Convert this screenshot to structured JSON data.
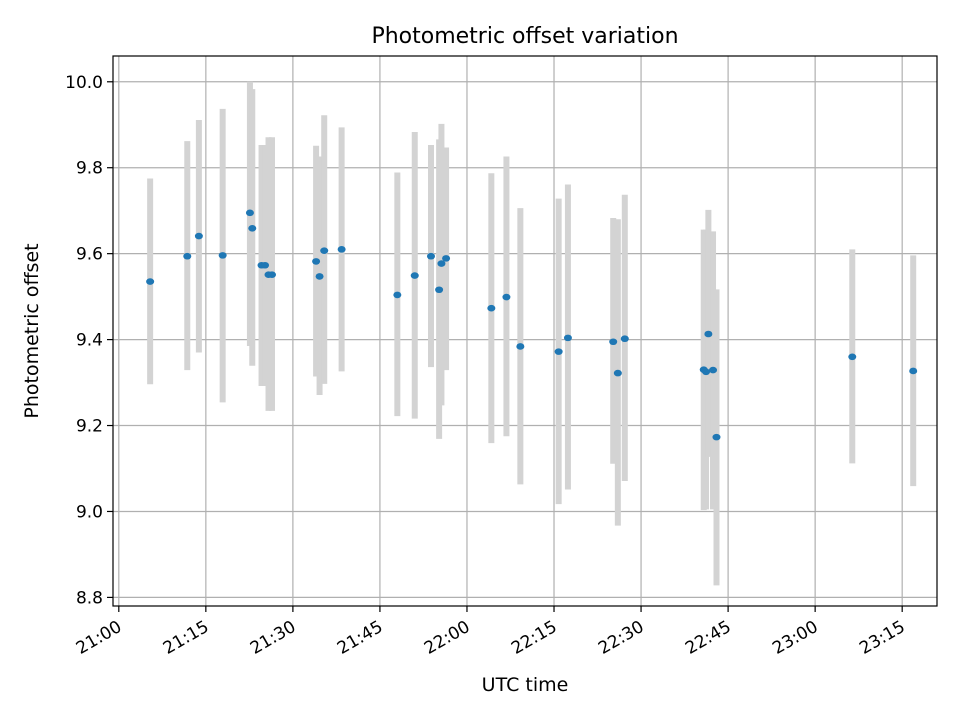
{
  "chart_data": {
    "type": "scatter",
    "title": "Photometric offset variation",
    "xlabel": "UTC time",
    "ylabel": "Photometric offset",
    "x_ticks": [
      "21:00",
      "21:15",
      "21:30",
      "21:45",
      "22:00",
      "22:15",
      "22:30",
      "22:45",
      "23:00",
      "23:15"
    ],
    "y_ticks": [
      "8.8",
      "9.0",
      "9.2",
      "9.4",
      "9.6",
      "9.8",
      "10.0"
    ],
    "xlim": [
      "20:59",
      "23:21"
    ],
    "ylim": [
      8.78,
      10.06
    ],
    "grid": true,
    "colors": {
      "points": "#1f77b4",
      "errorbars": "#d3d3d3",
      "grid": "#b0b0b0"
    },
    "points": [
      {
        "t": "21:05:24",
        "y": 9.535,
        "lo": 9.296,
        "hi": 9.775
      },
      {
        "t": "21:11:48",
        "y": 9.594,
        "lo": 9.329,
        "hi": 9.862
      },
      {
        "t": "21:13:48",
        "y": 9.641,
        "lo": 9.37,
        "hi": 9.911
      },
      {
        "t": "21:17:54",
        "y": 9.596,
        "lo": 9.254,
        "hi": 9.937
      },
      {
        "t": "21:22:36",
        "y": 9.695,
        "lo": 9.385,
        "hi": 10.0
      },
      {
        "t": "21:23:00",
        "y": 9.659,
        "lo": 9.339,
        "hi": 9.983
      },
      {
        "t": "21:24:36",
        "y": 9.573,
        "lo": 9.292,
        "hi": 9.853
      },
      {
        "t": "21:25:12",
        "y": 9.573,
        "lo": 9.292,
        "hi": 9.853
      },
      {
        "t": "21:25:48",
        "y": 9.551,
        "lo": 9.234,
        "hi": 9.871
      },
      {
        "t": "21:26:24",
        "y": 9.551,
        "lo": 9.234,
        "hi": 9.871
      },
      {
        "t": "21:34:00",
        "y": 9.582,
        "lo": 9.314,
        "hi": 9.851
      },
      {
        "t": "21:34:36",
        "y": 9.547,
        "lo": 9.271,
        "hi": 9.826
      },
      {
        "t": "21:35:24",
        "y": 9.607,
        "lo": 9.297,
        "hi": 9.922
      },
      {
        "t": "21:38:24",
        "y": 9.61,
        "lo": 9.326,
        "hi": 9.894
      },
      {
        "t": "21:48:00",
        "y": 9.504,
        "lo": 9.222,
        "hi": 9.789
      },
      {
        "t": "21:51:00",
        "y": 9.549,
        "lo": 9.216,
        "hi": 9.883
      },
      {
        "t": "21:53:48",
        "y": 9.594,
        "lo": 9.336,
        "hi": 9.853
      },
      {
        "t": "21:55:12",
        "y": 9.516,
        "lo": 9.169,
        "hi": 9.866
      },
      {
        "t": "21:55:36",
        "y": 9.577,
        "lo": 9.247,
        "hi": 9.902
      },
      {
        "t": "21:56:24",
        "y": 9.589,
        "lo": 9.329,
        "hi": 9.847
      },
      {
        "t": "22:04:12",
        "y": 9.473,
        "lo": 9.159,
        "hi": 9.787
      },
      {
        "t": "22:06:48",
        "y": 9.499,
        "lo": 9.175,
        "hi": 9.826
      },
      {
        "t": "22:09:12",
        "y": 9.384,
        "lo": 9.063,
        "hi": 9.706
      },
      {
        "t": "22:15:48",
        "y": 9.372,
        "lo": 9.017,
        "hi": 9.728
      },
      {
        "t": "22:17:24",
        "y": 9.404,
        "lo": 9.051,
        "hi": 9.761
      },
      {
        "t": "22:25:12",
        "y": 9.395,
        "lo": 9.111,
        "hi": 9.683
      },
      {
        "t": "22:26:00",
        "y": 9.322,
        "lo": 8.967,
        "hi": 9.68
      },
      {
        "t": "22:27:12",
        "y": 9.402,
        "lo": 9.071,
        "hi": 9.737
      },
      {
        "t": "22:40:48",
        "y": 9.33,
        "lo": 9.003,
        "hi": 9.656
      },
      {
        "t": "22:41:12",
        "y": 9.325,
        "lo": 9.005,
        "hi": 9.656
      },
      {
        "t": "22:41:36",
        "y": 9.413,
        "lo": 9.127,
        "hi": 9.702
      },
      {
        "t": "22:42:24",
        "y": 9.329,
        "lo": 9.005,
        "hi": 9.652
      },
      {
        "t": "22:43:00",
        "y": 9.173,
        "lo": 8.828,
        "hi": 9.517
      },
      {
        "t": "23:06:24",
        "y": 9.36,
        "lo": 9.112,
        "hi": 9.61
      },
      {
        "t": "23:16:54",
        "y": 9.327,
        "lo": 9.059,
        "hi": 9.596
      }
    ]
  }
}
